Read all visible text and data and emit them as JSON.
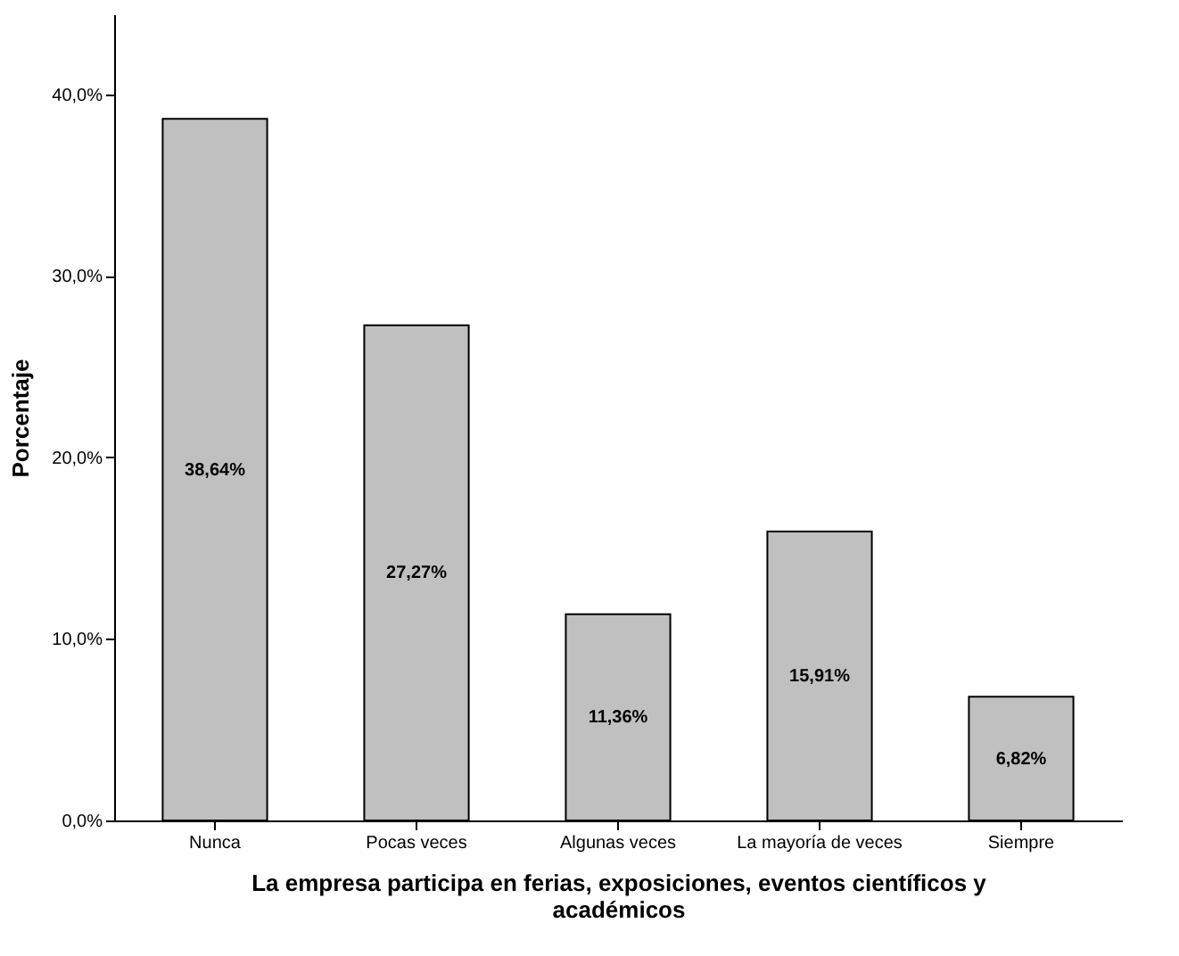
{
  "chart_data": {
    "type": "bar",
    "xlabel": "La empresa participa en ferias, exposiciones, eventos científicos y académicos",
    "ylabel": "Porcentaje",
    "categories": [
      "Nunca",
      "Pocas veces",
      "Algunas veces",
      "La mayoría de veces",
      "Siempre"
    ],
    "values": [
      38.64,
      27.27,
      11.36,
      15.91,
      6.82
    ],
    "value_labels": [
      "38,64%",
      "27,27%",
      "11,36%",
      "15,91%",
      "6,82%"
    ],
    "color": "#c0c0c0",
    "ylim": [
      0,
      44.4
    ],
    "yticks": [
      {
        "value": 0,
        "label": "0,0%"
      },
      {
        "value": 10,
        "label": "10,0%"
      },
      {
        "value": 20,
        "label": "20,0%"
      },
      {
        "value": 30,
        "label": "30,0%"
      },
      {
        "value": 40,
        "label": "40,0%"
      }
    ],
    "grid": false
  }
}
